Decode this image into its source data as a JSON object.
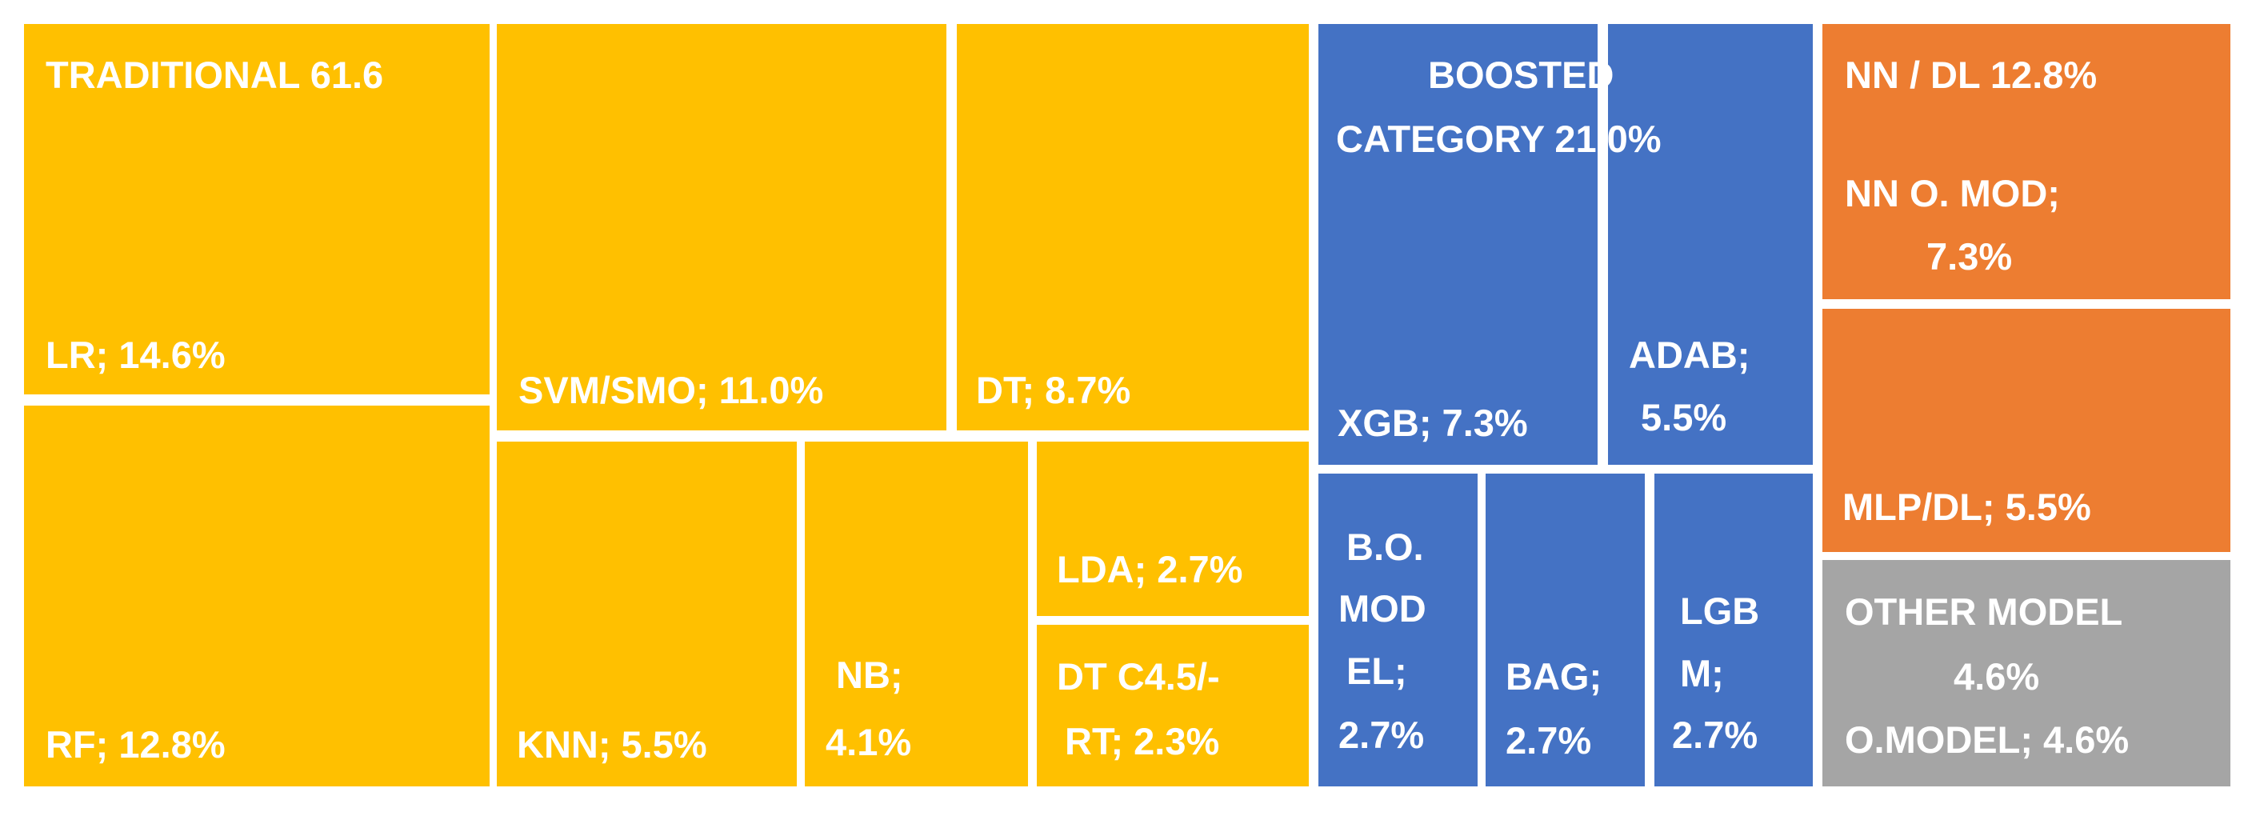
{
  "chart_data": {
    "type": "treemap",
    "unit": "%",
    "groups": [
      {
        "name": "TRADITIONAL",
        "header": [
          "TRADITIONAL  61.6"
        ],
        "color": "#FFC000",
        "items": [
          {
            "name": "LR",
            "value": 14.6,
            "text": [
              "LR; 14.6%"
            ]
          },
          {
            "name": "RF",
            "value": 12.8,
            "text": [
              "RF; 12.8%"
            ]
          },
          {
            "name": "SVM/SMO",
            "value": 11.0,
            "text": [
              "SVM/SMO; 11.0%"
            ]
          },
          {
            "name": "DT",
            "value": 8.7,
            "text": [
              "DT; 8.7%"
            ]
          },
          {
            "name": "KNN",
            "value": 5.5,
            "text": [
              "KNN; 5.5%"
            ]
          },
          {
            "name": "NB",
            "value": 4.1,
            "text": [
              "NB;",
              "4.1%"
            ]
          },
          {
            "name": "LDA",
            "value": 2.7,
            "text": [
              "LDA; 2.7%"
            ]
          },
          {
            "name": "DT C4.5/-RT",
            "value": 2.3,
            "text": [
              "DT C4.5/-",
              "RT; 2.3%"
            ]
          }
        ]
      },
      {
        "name": "BOOSTED CATEGORY",
        "header": [
          "BOOSTED",
          "CATEGORY 21.0%"
        ],
        "color": "#4472C4",
        "items": [
          {
            "name": "XGB",
            "value": 7.3,
            "text": [
              "XGB; 7.3%"
            ]
          },
          {
            "name": "ADAB",
            "value": 5.5,
            "text": [
              "ADAB;",
              "5.5%"
            ]
          },
          {
            "name": "B.O. MODEL",
            "value": 2.7,
            "text": [
              "B.O.",
              "MOD",
              "EL;",
              "2.7%"
            ]
          },
          {
            "name": "BAG",
            "value": 2.7,
            "text": [
              "BAG;",
              "2.7%"
            ]
          },
          {
            "name": "LGBM",
            "value": 2.7,
            "text": [
              "LGB",
              "M;",
              "2.7%"
            ]
          }
        ]
      },
      {
        "name": "NN / DL",
        "header": [
          "NN / DL 12.8%"
        ],
        "color": "#ED7D31",
        "items": [
          {
            "name": "NN O. MOD",
            "value": 7.3,
            "text": [
              "NN O. MOD;",
              "7.3%"
            ]
          },
          {
            "name": "MLP/DL",
            "value": 5.5,
            "text": [
              "MLP/DL; 5.5%"
            ]
          }
        ]
      },
      {
        "name": "OTHER MODEL",
        "header": [
          "OTHER MODEL",
          "4.6%"
        ],
        "color": "#A5A5A5",
        "items": [
          {
            "name": "O.MODEL",
            "value": 4.6,
            "text": [
              "O.MODEL; 4.6%"
            ]
          }
        ]
      }
    ]
  }
}
